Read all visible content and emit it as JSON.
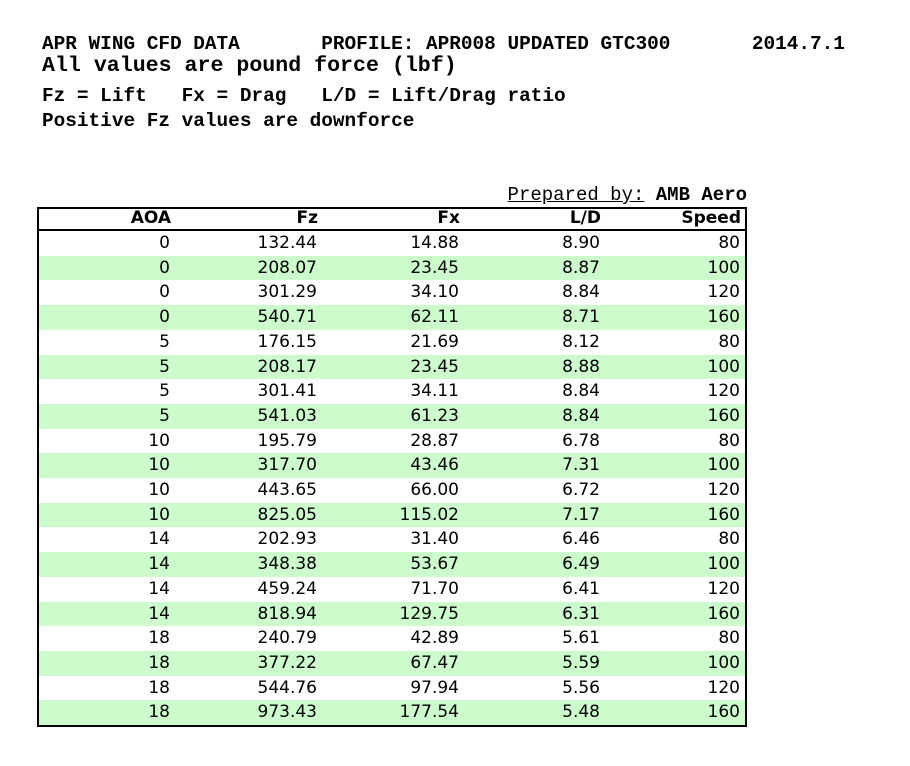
{
  "header": {
    "line1": "APR WING CFD DATA       PROFILE: APR008 UPDATED GTC300       2014.7.1",
    "line2": "All values are pound force (lbf)",
    "line3": "Fz = Lift   Fx = Drag   L/D = Lift/Drag ratio",
    "line4": "Positive Fz values are downforce"
  },
  "prepared_by": {
    "label": "Prepared by:",
    "value": "AMB Aero"
  },
  "colors": {
    "alt_row_green": "#ccfbcc",
    "border": "#000000",
    "text": "#000000"
  },
  "chart_data": {
    "type": "table",
    "title": "APR WING CFD DATA",
    "columns": [
      "AOA",
      "Fz",
      "Fx",
      "L/D",
      "Speed"
    ],
    "rows": [
      [
        "0",
        "132.44",
        "14.88",
        "8.90",
        "80"
      ],
      [
        "0",
        "208.07",
        "23.45",
        "8.87",
        "100"
      ],
      [
        "0",
        "301.29",
        "34.10",
        "8.84",
        "120"
      ],
      [
        "0",
        "540.71",
        "62.11",
        "8.71",
        "160"
      ],
      [
        "5",
        "176.15",
        "21.69",
        "8.12",
        "80"
      ],
      [
        "5",
        "208.17",
        "23.45",
        "8.88",
        "100"
      ],
      [
        "5",
        "301.41",
        "34.11",
        "8.84",
        "120"
      ],
      [
        "5",
        "541.03",
        "61.23",
        "8.84",
        "160"
      ],
      [
        "10",
        "195.79",
        "28.87",
        "6.78",
        "80"
      ],
      [
        "10",
        "317.70",
        "43.46",
        "7.31",
        "100"
      ],
      [
        "10",
        "443.65",
        "66.00",
        "6.72",
        "120"
      ],
      [
        "10",
        "825.05",
        "115.02",
        "7.17",
        "160"
      ],
      [
        "14",
        "202.93",
        "31.40",
        "6.46",
        "80"
      ],
      [
        "14",
        "348.38",
        "53.67",
        "6.49",
        "100"
      ],
      [
        "14",
        "459.24",
        "71.70",
        "6.41",
        "120"
      ],
      [
        "14",
        "818.94",
        "129.75",
        "6.31",
        "160"
      ],
      [
        "18",
        "240.79",
        "42.89",
        "5.61",
        "80"
      ],
      [
        "18",
        "377.22",
        "67.47",
        "5.59",
        "100"
      ],
      [
        "18",
        "544.76",
        "97.94",
        "5.56",
        "120"
      ],
      [
        "18",
        "973.43",
        "177.54",
        "5.48",
        "160"
      ]
    ]
  }
}
